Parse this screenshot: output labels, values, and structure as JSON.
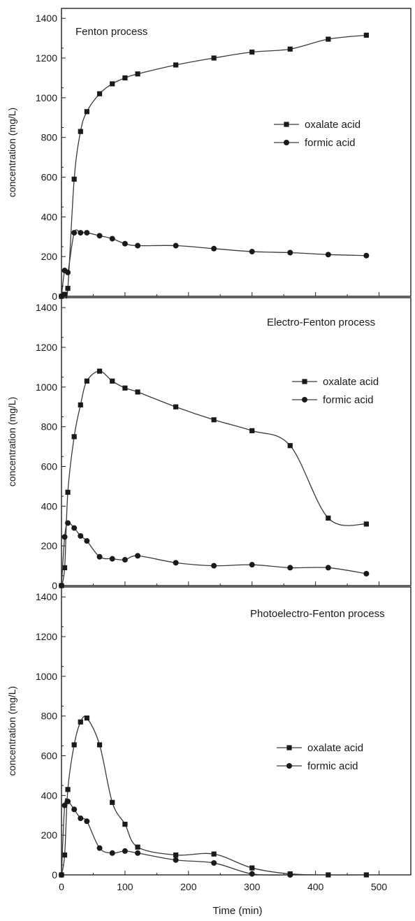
{
  "chart_data": [
    {
      "type": "line",
      "title": "Fenton process",
      "ylabel": "concentration (mg/L)",
      "xlabel": "",
      "xlim": [
        0,
        550
      ],
      "ylim": [
        0,
        1450
      ],
      "x_ticks": [
        0,
        100,
        200,
        300,
        400,
        500
      ],
      "y_ticks": [
        0,
        200,
        400,
        600,
        800,
        1000,
        1200,
        1400
      ],
      "legend_position": "right-middle",
      "series": [
        {
          "name": "oxalate acid",
          "marker": "square",
          "x": [
            0,
            5,
            10,
            20,
            30,
            40,
            60,
            80,
            100,
            120,
            180,
            240,
            300,
            360,
            420,
            480
          ],
          "y": [
            0,
            10,
            40,
            590,
            830,
            930,
            1020,
            1070,
            1100,
            1120,
            1165,
            1200,
            1230,
            1245,
            1295,
            1315
          ]
        },
        {
          "name": "formic acid",
          "marker": "circle",
          "x": [
            0,
            5,
            10,
            20,
            30,
            40,
            60,
            80,
            100,
            120,
            180,
            240,
            300,
            360,
            420,
            480
          ],
          "y": [
            0,
            130,
            120,
            320,
            320,
            320,
            305,
            290,
            265,
            255,
            255,
            240,
            225,
            220,
            210,
            205
          ]
        }
      ]
    },
    {
      "type": "line",
      "title": "Electro-Fenton process",
      "ylabel": "concentration (mg/L)",
      "xlabel": "",
      "xlim": [
        0,
        550
      ],
      "ylim": [
        0,
        1450
      ],
      "x_ticks": [
        0,
        100,
        200,
        300,
        400,
        500
      ],
      "y_ticks": [
        0,
        200,
        400,
        600,
        800,
        1000,
        1200,
        1400
      ],
      "legend_position": "right-middle",
      "series": [
        {
          "name": "oxalate acid",
          "marker": "square",
          "x": [
            0,
            5,
            10,
            20,
            30,
            40,
            60,
            80,
            100,
            120,
            180,
            240,
            300,
            360,
            420,
            480
          ],
          "y": [
            0,
            90,
            470,
            750,
            910,
            1030,
            1080,
            1030,
            995,
            975,
            900,
            835,
            780,
            705,
            340,
            310
          ]
        },
        {
          "name": "formic acid",
          "marker": "circle",
          "x": [
            0,
            5,
            10,
            20,
            30,
            40,
            60,
            80,
            100,
            120,
            180,
            240,
            300,
            360,
            420,
            480
          ],
          "y": [
            0,
            245,
            315,
            290,
            250,
            225,
            145,
            135,
            130,
            150,
            115,
            100,
            105,
            90,
            90,
            60
          ]
        }
      ]
    },
    {
      "type": "line",
      "title": "Photoelectro-Fenton process",
      "ylabel": "concentration (mg/L)",
      "xlabel": "Time (min)",
      "xlim": [
        0,
        550
      ],
      "ylim": [
        0,
        1450
      ],
      "x_ticks": [
        0,
        100,
        200,
        300,
        400,
        500
      ],
      "y_ticks": [
        0,
        200,
        400,
        600,
        800,
        1000,
        1200,
        1400
      ],
      "legend_position": "right-middle",
      "series": [
        {
          "name": "oxalate acid",
          "marker": "square",
          "x": [
            0,
            5,
            10,
            20,
            30,
            40,
            60,
            80,
            100,
            120,
            180,
            240,
            300,
            360,
            420,
            480
          ],
          "y": [
            0,
            100,
            430,
            655,
            770,
            790,
            655,
            365,
            255,
            140,
            100,
            105,
            35,
            5,
            0,
            0
          ]
        },
        {
          "name": "formic acid",
          "marker": "circle",
          "x": [
            0,
            5,
            10,
            20,
            30,
            40,
            60,
            80,
            100,
            120,
            180,
            240,
            300,
            360
          ],
          "y": [
            0,
            350,
            370,
            330,
            285,
            270,
            135,
            110,
            120,
            110,
            75,
            60,
            5,
            0
          ]
        }
      ]
    }
  ]
}
